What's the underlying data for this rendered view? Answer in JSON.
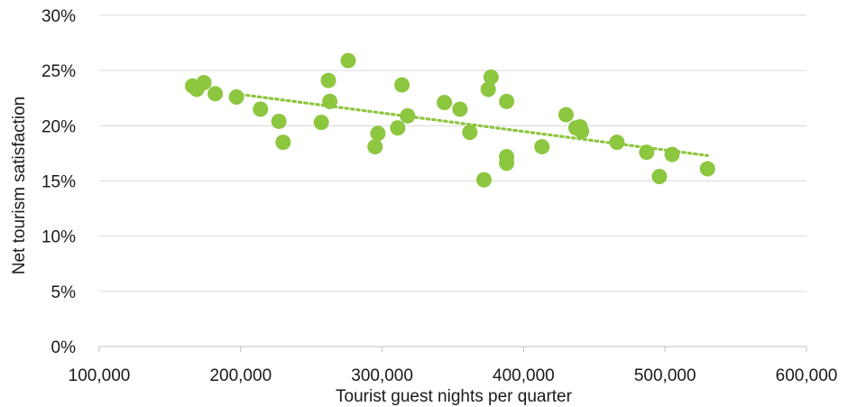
{
  "chart_data": {
    "type": "scatter",
    "title": "",
    "xlabel": "Tourist guest nights per quarter",
    "ylabel": "Net tourism satisfaction",
    "xlim": [
      100000,
      600000
    ],
    "ylim": [
      0,
      30
    ],
    "x_ticks": [
      100000,
      200000,
      300000,
      400000,
      500000,
      600000
    ],
    "x_tick_labels": [
      "100,000",
      "200,000",
      "300,000",
      "400,000",
      "500,000",
      "600,000"
    ],
    "y_ticks": [
      0,
      5,
      10,
      15,
      20,
      25,
      30
    ],
    "y_tick_labels": [
      "0%",
      "5%",
      "10%",
      "15%",
      "20%",
      "25%",
      "30%"
    ],
    "grid": true,
    "legend": "none",
    "marker_color": "#8dc63f",
    "trendline": {
      "type": "linear",
      "style": "dotted",
      "color": "#8dc63f",
      "x_start": 196000,
      "y_start": 22.9,
      "x_end": 530000,
      "y_end": 17.3
    },
    "series": [
      {
        "points": [
          {
            "x": 166000,
            "y": 23.6
          },
          {
            "x": 169000,
            "y": 23.3
          },
          {
            "x": 174000,
            "y": 23.9
          },
          {
            "x": 182000,
            "y": 22.9
          },
          {
            "x": 197000,
            "y": 22.6
          },
          {
            "x": 214000,
            "y": 21.5
          },
          {
            "x": 227000,
            "y": 20.4
          },
          {
            "x": 230000,
            "y": 18.5
          },
          {
            "x": 257000,
            "y": 20.3
          },
          {
            "x": 262000,
            "y": 24.1
          },
          {
            "x": 263000,
            "y": 22.2
          },
          {
            "x": 276000,
            "y": 25.9
          },
          {
            "x": 295000,
            "y": 18.1
          },
          {
            "x": 297000,
            "y": 19.3
          },
          {
            "x": 311000,
            "y": 19.8
          },
          {
            "x": 314000,
            "y": 23.7
          },
          {
            "x": 318000,
            "y": 20.9
          },
          {
            "x": 344000,
            "y": 22.1
          },
          {
            "x": 355000,
            "y": 21.5
          },
          {
            "x": 362000,
            "y": 19.4
          },
          {
            "x": 372000,
            "y": 15.1
          },
          {
            "x": 375000,
            "y": 23.3
          },
          {
            "x": 377000,
            "y": 24.4
          },
          {
            "x": 388000,
            "y": 17.2
          },
          {
            "x": 388000,
            "y": 16.6
          },
          {
            "x": 388000,
            "y": 22.2
          },
          {
            "x": 413000,
            "y": 18.1
          },
          {
            "x": 430000,
            "y": 21.0
          },
          {
            "x": 437000,
            "y": 19.8
          },
          {
            "x": 440000,
            "y": 19.9
          },
          {
            "x": 441000,
            "y": 19.5
          },
          {
            "x": 466000,
            "y": 18.5
          },
          {
            "x": 487000,
            "y": 17.6
          },
          {
            "x": 496000,
            "y": 15.4
          },
          {
            "x": 505000,
            "y": 17.4
          },
          {
            "x": 530000,
            "y": 16.1
          }
        ]
      }
    ]
  }
}
